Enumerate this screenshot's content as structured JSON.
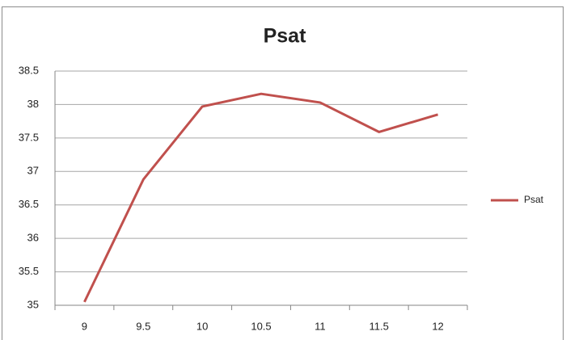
{
  "chart_data": {
    "type": "line",
    "title": "Psat",
    "categories": [
      "9",
      "9.5",
      "10",
      "10.5",
      "11",
      "11.5",
      "12"
    ],
    "series": [
      {
        "name": "Psat",
        "color": "#c0504d",
        "values": [
          35.05,
          36.88,
          37.97,
          38.16,
          38.03,
          37.59,
          37.85
        ]
      }
    ],
    "ylim": [
      35,
      38.5
    ],
    "yticks": [
      35,
      35.5,
      36,
      36.5,
      37,
      37.5,
      38,
      38.5
    ],
    "grid": true,
    "legend": "right"
  }
}
